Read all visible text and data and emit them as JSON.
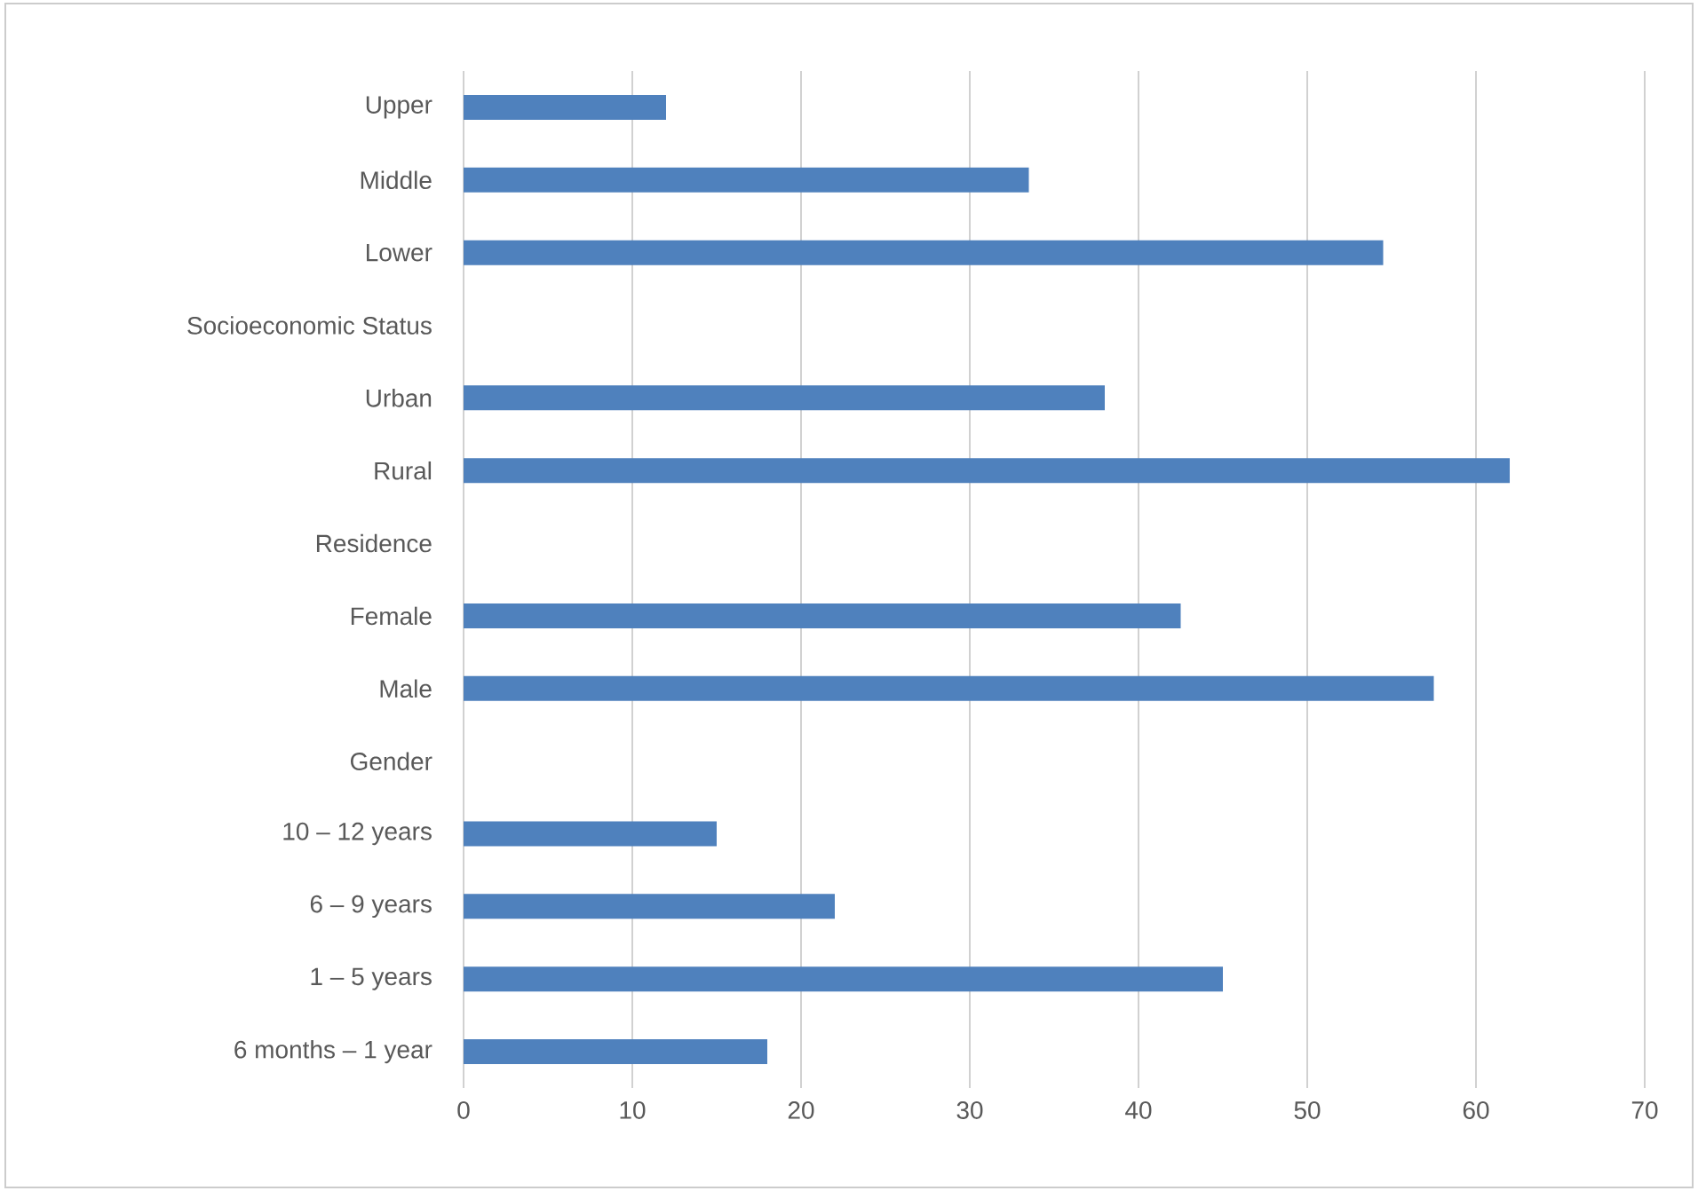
{
  "chart_data": {
    "type": "bar",
    "orientation": "horizontal",
    "categories": [
      "Upper",
      "Middle",
      "Lower",
      "Socioeconomic Status",
      "Urban",
      "Rural",
      "Residence",
      "Female",
      "Male",
      "Gender",
      "10 – 12 years",
      "6 – 9 years",
      "1 – 5 years",
      "6 months – 1 year"
    ],
    "values": [
      12,
      33.5,
      54.5,
      null,
      38,
      62,
      null,
      42.5,
      57.5,
      null,
      15,
      22,
      45,
      18
    ],
    "color": "#4f81bd",
    "xlim": [
      0,
      70
    ],
    "xticks": [
      0,
      10,
      20,
      30,
      40,
      50,
      60,
      70
    ],
    "grid": "x"
  }
}
